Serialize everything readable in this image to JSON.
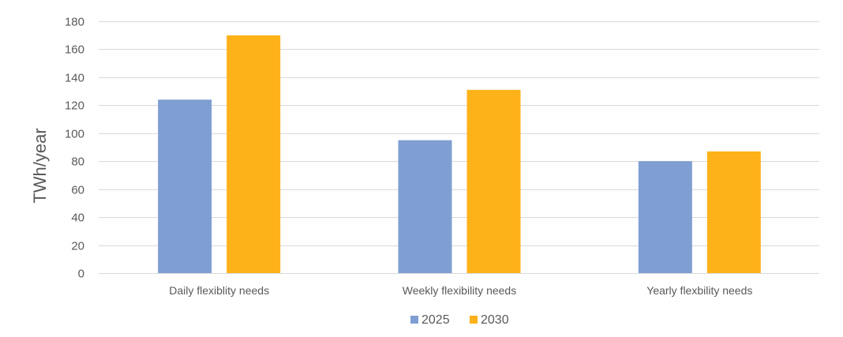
{
  "chart_data": {
    "type": "bar",
    "title": "",
    "xlabel": "",
    "ylabel": "TWh/year",
    "ylim": [
      0,
      180
    ],
    "yticks": [
      0,
      20,
      40,
      60,
      80,
      100,
      120,
      140,
      160,
      180
    ],
    "grid": true,
    "legend_position": "bottom",
    "categories": [
      "Daily flexiblity needs",
      "Weekly flexibility needs",
      "Yearly flexbility needs"
    ],
    "series": [
      {
        "name": "2025",
        "color": "#7f9fd3",
        "values": [
          124,
          95,
          80
        ]
      },
      {
        "name": "2030",
        "color": "#fdb21a",
        "values": [
          170,
          131,
          87
        ]
      }
    ]
  }
}
